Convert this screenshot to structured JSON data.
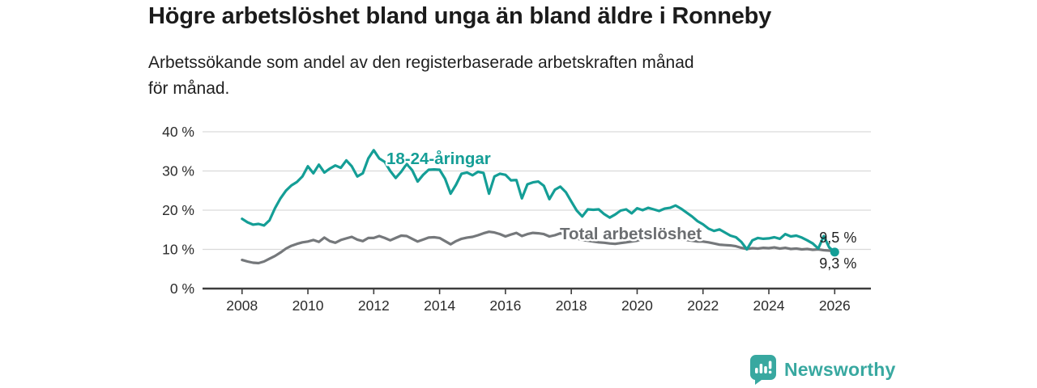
{
  "header": {
    "title": "Högre arbetslöshet bland unga än bland äldre i Ronneby",
    "subtitle": "Arbetssökande som andel av den registerbaserade arbetskraften månad för månad."
  },
  "chart_data": {
    "type": "line",
    "title": "Högre arbetslöshet bland unga än bland äldre i Ronneby",
    "subtitle": "Arbetssökande som andel av den registerbaserade arbetskraften månad för månad.",
    "x_unit": "year",
    "y_unit": "%",
    "x_start": 2008.0,
    "x_step_years": 0.166667,
    "xlim": [
      2006.8,
      2027.1
    ],
    "ylim": [
      0,
      40
    ],
    "grid": "horizontal",
    "legend_position": "inline-labels",
    "yticks": [
      {
        "value": 0,
        "label": "0 %"
      },
      {
        "value": 10,
        "label": "10 %"
      },
      {
        "value": 20,
        "label": "20 %"
      },
      {
        "value": 30,
        "label": "30 %"
      },
      {
        "value": 40,
        "label": "40 %"
      }
    ],
    "xticks": [
      {
        "value": 2008,
        "label": "2008"
      },
      {
        "value": 2010,
        "label": "2010"
      },
      {
        "value": 2012,
        "label": "2012"
      },
      {
        "value": 2014,
        "label": "2014"
      },
      {
        "value": 2016,
        "label": "2016"
      },
      {
        "value": 2018,
        "label": "2018"
      },
      {
        "value": 2020,
        "label": "2020"
      },
      {
        "value": 2022,
        "label": "2022"
      },
      {
        "value": 2024,
        "label": "2024"
      },
      {
        "value": 2026,
        "label": "2026"
      }
    ],
    "series": [
      {
        "name": "18-24-åringar",
        "color": "#149e96",
        "marker_end": true,
        "end_label": "9,3 %",
        "end_value": 9.3,
        "values": [
          17.8,
          16.9,
          16.3,
          16.5,
          16.1,
          17.4,
          20.5,
          23.0,
          25.0,
          26.3,
          27.2,
          28.6,
          31.2,
          29.4,
          31.6,
          29.6,
          30.6,
          31.4,
          30.8,
          32.7,
          31.2,
          28.6,
          29.4,
          33.2,
          35.3,
          33.2,
          32.3,
          30.0,
          28.2,
          29.8,
          31.8,
          30.2,
          27.3,
          29.0,
          30.3,
          30.4,
          30.3,
          28.0,
          24.2,
          26.5,
          29.3,
          29.6,
          28.9,
          29.8,
          29.5,
          24.2,
          28.6,
          29.3,
          29.0,
          27.6,
          27.7,
          23.0,
          26.6,
          27.1,
          27.3,
          26.2,
          22.8,
          25.2,
          26.0,
          24.6,
          22.2,
          19.9,
          18.4,
          20.2,
          20.1,
          20.2,
          19.0,
          18.1,
          18.9,
          19.9,
          20.2,
          19.2,
          20.5,
          20.0,
          20.6,
          20.2,
          19.8,
          20.4,
          20.6,
          21.2,
          20.4,
          19.4,
          18.4,
          17.2,
          16.4,
          15.3,
          14.7,
          15.1,
          14.3,
          13.5,
          13.1,
          11.9,
          10.0,
          12.3,
          12.9,
          12.7,
          12.8,
          13.1,
          12.7,
          13.9,
          13.3,
          13.5,
          13.0,
          12.3,
          11.5,
          10.2,
          13.4,
          10.5,
          9.3
        ]
      },
      {
        "name": "Total arbetslöshet",
        "color": "#75787b",
        "marker_end": false,
        "end_label": "9,5 %",
        "end_value": 9.5,
        "values": [
          7.3,
          6.9,
          6.6,
          6.5,
          6.9,
          7.6,
          8.3,
          9.2,
          10.2,
          10.9,
          11.4,
          11.8,
          12.0,
          12.4,
          11.9,
          13.0,
          12.1,
          11.7,
          12.4,
          12.8,
          13.2,
          12.5,
          12.1,
          12.9,
          12.9,
          13.4,
          12.9,
          12.3,
          12.9,
          13.5,
          13.4,
          12.7,
          12.0,
          12.5,
          13.0,
          13.1,
          12.9,
          12.1,
          11.3,
          12.1,
          12.7,
          13.0,
          13.2,
          13.6,
          14.1,
          14.5,
          14.3,
          13.9,
          13.3,
          13.8,
          14.2,
          13.4,
          13.9,
          14.2,
          14.1,
          13.9,
          13.3,
          13.6,
          14.1,
          13.7,
          13.2,
          12.8,
          12.4,
          12.2,
          12.0,
          11.8,
          11.7,
          11.5,
          11.4,
          11.6,
          11.8,
          12.0,
          12.2,
          12.7,
          13.1,
          13.0,
          12.9,
          12.8,
          13.0,
          12.8,
          12.6,
          12.4,
          12.2,
          12.0,
          12.0,
          11.8,
          11.5,
          11.2,
          11.1,
          11.0,
          10.8,
          10.4,
          10.1,
          10.3,
          10.2,
          10.4,
          10.3,
          10.5,
          10.2,
          10.4,
          10.1,
          10.2,
          10.0,
          10.1,
          9.9,
          10.0,
          9.8,
          9.7,
          9.5
        ]
      }
    ],
    "colors": {
      "youth_line": "#149e96",
      "total_line": "#75787b",
      "total_label": "#6b6e71",
      "gridline": "#d9d9d9",
      "axis": "#3d3d3d",
      "tick_text": "#2b2b2b",
      "end_label_text": "#1f1f1f",
      "brand_teal": "#38a8a0"
    }
  },
  "footer": {
    "brand": "Newsworthy"
  }
}
